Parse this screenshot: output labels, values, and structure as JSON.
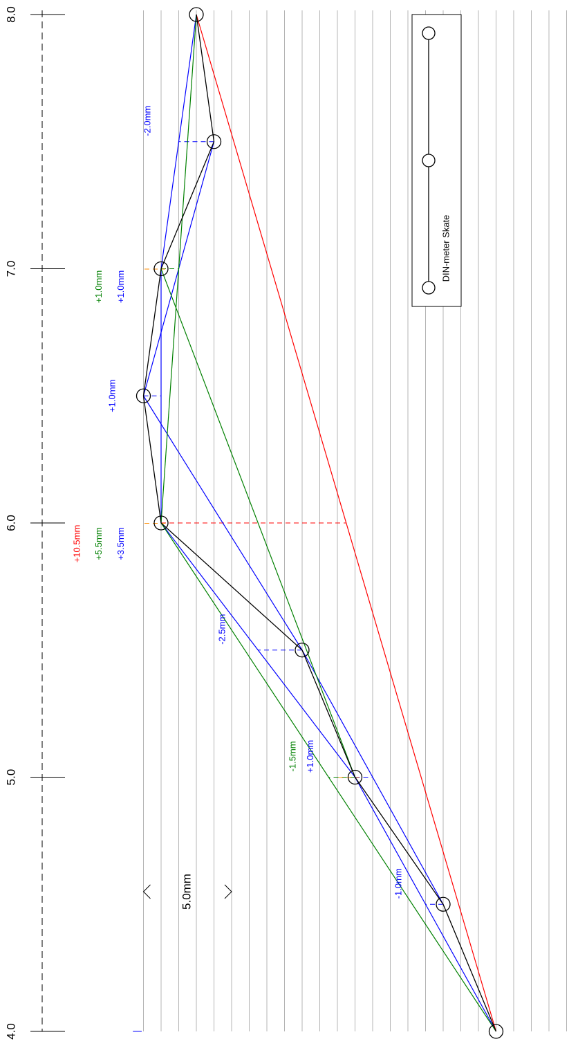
{
  "chart_data": {
    "type": "line",
    "title": "",
    "xlabel": "",
    "ylabel": "",
    "axis_ticks": [
      "4.0",
      "5.0",
      "6.0",
      "7.0",
      "8.0"
    ],
    "axis_range": [
      4.0,
      8.0
    ],
    "strip_spacing_mm": 1.0,
    "strip_range_mm": [
      0,
      24
    ],
    "grid": true,
    "scale_bar": {
      "label": "5.0mm",
      "from_mm": 0,
      "to_mm": 5
    },
    "legend": {
      "label": "DIN-meter Skate",
      "placement": "top-right"
    },
    "colors": {
      "measured": "#000000",
      "span_2m": "#0000ff",
      "span_3m": "#008000",
      "span_4m": "#ff0000",
      "step": "#ff8c00"
    },
    "series": [
      {
        "color": "measured",
        "points": [
          {
            "pos": 4.0,
            "mm": 20.0
          },
          {
            "pos": 4.5,
            "mm": 17.0
          },
          {
            "pos": 5.0,
            "mm": 12.0
          },
          {
            "pos": 5.5,
            "mm": 9.0
          },
          {
            "pos": 6.0,
            "mm": 1.0
          },
          {
            "pos": 6.5,
            "mm": 0.0
          },
          {
            "pos": 7.0,
            "mm": 1.0
          },
          {
            "pos": 7.5,
            "mm": 4.0
          },
          {
            "pos": 8.0,
            "mm": 3.0
          }
        ]
      },
      {
        "color": "span_2m",
        "chords": [
          [
            4.0,
            5.0
          ],
          [
            4.5,
            5.5
          ],
          [
            5.0,
            6.0
          ],
          [
            5.5,
            6.5
          ],
          [
            6.0,
            7.0
          ],
          [
            6.5,
            7.5
          ],
          [
            7.0,
            8.0
          ]
        ]
      },
      {
        "color": "span_3m",
        "chords": [
          [
            4.0,
            6.0
          ],
          [
            5.0,
            7.0
          ],
          [
            6.0,
            8.0
          ]
        ]
      },
      {
        "color": "span_4m",
        "chords": [
          [
            4.0,
            8.0
          ]
        ]
      }
    ],
    "deviations": [
      {
        "pos": 4.5,
        "mm_value": -1.0,
        "label": "-1.0mm",
        "color": "span_2m",
        "mm_label": 14.5
      },
      {
        "pos": 5.0,
        "mm_value": 1.0,
        "label": "+1.0mm",
        "color": "span_2m",
        "mm_label": 9.5
      },
      {
        "pos": 5.0,
        "mm_value": -1.5,
        "label": "-1.5mm",
        "color": "span_3m",
        "mm_label": 8.5
      },
      {
        "pos": 5.5,
        "mm_value": -2.5,
        "label": "-2.5mm",
        "color": "span_2m",
        "mm_label": 4.5
      },
      {
        "pos": 6.0,
        "mm_value": 3.5,
        "label": "+3.5mm",
        "color": "span_2m",
        "mm_label": -1.25
      },
      {
        "pos": 6.0,
        "mm_value": 5.5,
        "label": "+5.5mm",
        "color": "span_3m",
        "mm_label": -2.5
      },
      {
        "pos": 6.0,
        "mm_value": 10.5,
        "label": "+10.5mm",
        "color": "span_4m",
        "mm_label": -3.75
      },
      {
        "pos": 6.5,
        "mm_value": 1.0,
        "label": "+1.0mm",
        "color": "span_2m",
        "mm_label": -1.75
      },
      {
        "pos": 7.0,
        "mm_value": 1.0,
        "label": "+1.0mm",
        "color": "span_2m",
        "mm_label": -1.25
      },
      {
        "pos": 7.0,
        "mm_value": 1.0,
        "label": "+1.0mm",
        "color": "span_3m",
        "mm_label": -2.5
      },
      {
        "pos": 7.5,
        "mm_value": -2.0,
        "label": "-2.0mm",
        "color": "span_2m",
        "mm_label": 0.25
      }
    ]
  }
}
